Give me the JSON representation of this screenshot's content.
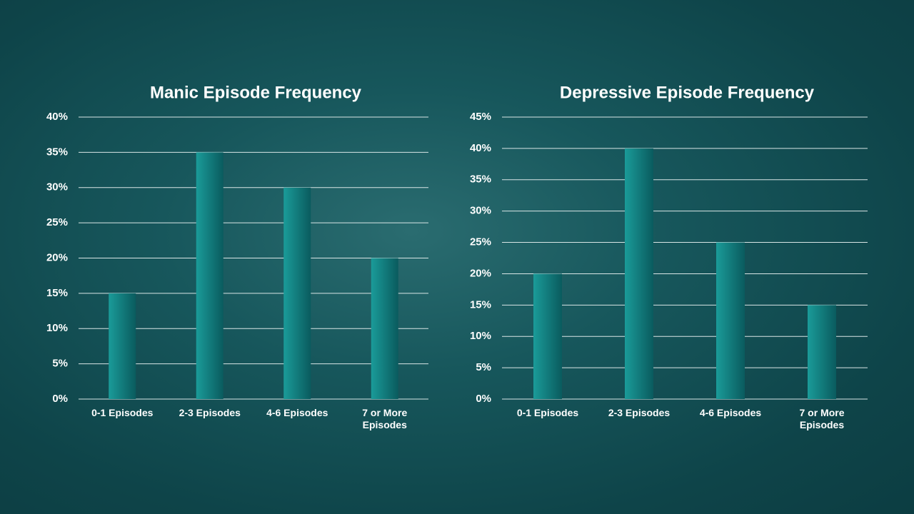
{
  "chart_data": [
    {
      "type": "bar",
      "title": "Manic Episode Frequency",
      "categories": [
        "0-1 Episodes",
        "2-3 Episodes",
        "4-6 Episodes",
        "7 or More Episodes"
      ],
      "values": [
        15,
        35,
        30,
        20
      ],
      "color": "#16908f",
      "ylim": [
        0,
        40
      ],
      "yticks": [
        {
          "value": 0,
          "label": "0%"
        },
        {
          "value": 5,
          "label": "5%"
        },
        {
          "value": 10,
          "label": "10%"
        },
        {
          "value": 15,
          "label": "15%"
        },
        {
          "value": 20,
          "label": "20%"
        },
        {
          "value": 25,
          "label": "25%"
        },
        {
          "value": 30,
          "label": "30%"
        },
        {
          "value": 35,
          "label": "35%"
        },
        {
          "value": 40,
          "label": "40%"
        }
      ],
      "grid": true
    },
    {
      "type": "bar",
      "title": "Depressive Episode Frequency",
      "categories": [
        "0-1 Episodes",
        "2-3 Episodes",
        "4-6 Episodes",
        "7 or More Episodes"
      ],
      "values": [
        20,
        40,
        25,
        15
      ],
      "color": "#16908f",
      "ylim": [
        0,
        45
      ],
      "yticks": [
        {
          "value": 0,
          "label": "0%"
        },
        {
          "value": 5,
          "label": "5%"
        },
        {
          "value": 10,
          "label": "10%"
        },
        {
          "value": 15,
          "label": "15%"
        },
        {
          "value": 20,
          "label": "20%"
        },
        {
          "value": 25,
          "label": "25%"
        },
        {
          "value": 30,
          "label": "30%"
        },
        {
          "value": 35,
          "label": "35%"
        },
        {
          "value": 40,
          "label": "40%"
        },
        {
          "value": 45,
          "label": "45%"
        }
      ],
      "grid": true
    }
  ]
}
